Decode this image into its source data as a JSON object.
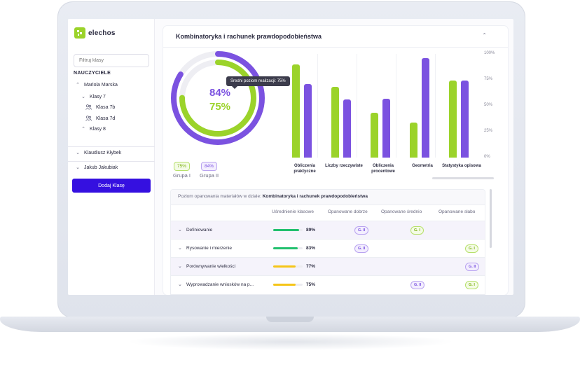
{
  "app": {
    "name": "elechos"
  },
  "sidebar": {
    "filter_placeholder": "Filtruj klasy",
    "section": "NAUCZYCIELE",
    "teacher1": "Mariola Marska",
    "klasy7": "Klasy 7",
    "class_a": "Klasa 7b",
    "class_b": "Klasa 7d",
    "klasy8": "Klasy 8",
    "teacher2": "Klaudiusz Kłybek",
    "teacher3": "Jakub Jakubiak",
    "add_button": "Dodaj Klasę"
  },
  "card": {
    "title": "Kombinatoryka i rachunek prawdopodobieństwa"
  },
  "donut": {
    "group2_pct": "84%",
    "group1_pct": "75%",
    "group2_value": 84,
    "group1_value": 75,
    "tooltip": "Średni poziom realizacji: 75%",
    "legend": [
      {
        "badge": "75%",
        "label": "Grupa I"
      },
      {
        "badge": "84%",
        "label": "Grupa II"
      }
    ]
  },
  "chart_data": {
    "type": "bar",
    "categories": [
      "Obliczenia praktyczne",
      "Liczby rzeczywiste",
      "Obliczenia procentowe",
      "Geometria",
      "Statystyka opisowa"
    ],
    "series": [
      {
        "name": "Grupa I",
        "values": [
          90,
          68,
          43,
          34,
          74
        ]
      },
      {
        "name": "Grupa II",
        "values": [
          71,
          56,
          57,
          96,
          74
        ]
      }
    ],
    "ticks": [
      "100%",
      "75%",
      "50%",
      "25%",
      "0%"
    ],
    "ylim": [
      0,
      100
    ],
    "colors": {
      "group1": "#9bd32a",
      "group2": "#7b52e0"
    }
  },
  "table": {
    "header_prefix": "Poziom opanowania materiałów w dziale:",
    "header_topic": "Kombinatoryka i rachunek prawdopodobieństwa",
    "columns": [
      "Uśrednienie klasowe",
      "Opanowane dobrze",
      "Opanowane średnio",
      "Opanowane słabo"
    ],
    "rows": [
      {
        "label": "Definiowanie",
        "pct": "89%",
        "value": 89,
        "color": "#22c06e",
        "chips": [
          {
            "text": "G. II",
            "col": 1,
            "kind": "g2"
          },
          {
            "text": "G. I",
            "col": 2,
            "kind": "g1"
          }
        ]
      },
      {
        "label": "Rysowanie i mierzenie",
        "pct": "83%",
        "value": 83,
        "color": "#22c06e",
        "chips": [
          {
            "text": "G. II",
            "col": 1,
            "kind": "g2"
          },
          {
            "text": "G. I",
            "col": 3,
            "kind": "g1"
          }
        ]
      },
      {
        "label": "Porównywanie wielkości",
        "pct": "77%",
        "value": 77,
        "color": "#f5c518",
        "chips": [
          {
            "text": "G. II",
            "col": 3,
            "kind": "g2"
          }
        ]
      },
      {
        "label": "Wyprowadzanie wniosków na p...",
        "pct": "75%",
        "value": 75,
        "color": "#f5c518",
        "chips": [
          {
            "text": "G. II",
            "col": 2,
            "kind": "g2"
          },
          {
            "text": "G. I",
            "col": 3,
            "kind": "g1"
          }
        ]
      }
    ]
  }
}
